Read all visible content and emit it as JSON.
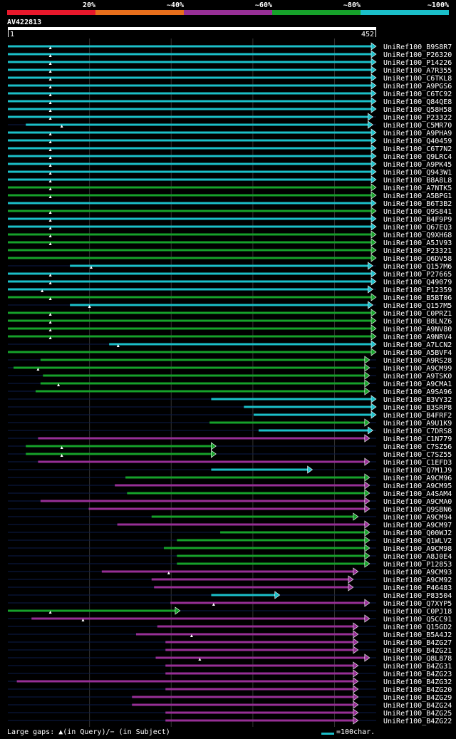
{
  "legend": {
    "segments": [
      {
        "label": "20%",
        "color": "#e8182b"
      },
      {
        "label": "~40%",
        "color": "#e86f1c"
      },
      {
        "label": "~60%",
        "color": "#972f96"
      },
      {
        "label": "~80%",
        "color": "#16a12a"
      },
      {
        "label": "~100%",
        "color": "#1bbfc9"
      }
    ]
  },
  "query": {
    "name": "AV422813",
    "start_label": "1",
    "end_label": "452",
    "length": 452
  },
  "footer": {
    "gaps_text": "Large gaps: ▲(in Query)/− (in Subject)",
    "scale_text": "=100char."
  },
  "chart_data": {
    "type": "alignment",
    "title": "AV422813",
    "query_length": 452,
    "x_range": [
      1,
      452
    ],
    "hits": [
      {
        "name": "UniRef100_B9S8R7",
        "start": 1,
        "end": 452,
        "color": "cyan",
        "gap": 53
      },
      {
        "name": "UniRef100_P26320",
        "start": 1,
        "end": 452,
        "color": "cyan",
        "gap": 53
      },
      {
        "name": "UniRef100_P14226",
        "start": 1,
        "end": 452,
        "color": "cyan",
        "gap": 53
      },
      {
        "name": "UniRef100_A7R355",
        "start": 1,
        "end": 452,
        "color": "cyan",
        "gap": 53
      },
      {
        "name": "UniRef100_C6TKL8",
        "start": 1,
        "end": 452,
        "color": "cyan",
        "gap": 53
      },
      {
        "name": "UniRef100_A9PGS6",
        "start": 1,
        "end": 452,
        "color": "cyan",
        "gap": 53
      },
      {
        "name": "UniRef100_C6TC92",
        "start": 1,
        "end": 452,
        "color": "cyan",
        "gap": 53
      },
      {
        "name": "UniRef100_Q84QE8",
        "start": 1,
        "end": 452,
        "color": "cyan",
        "gap": 53
      },
      {
        "name": "UniRef100_Q58H58",
        "start": 1,
        "end": 452,
        "color": "cyan",
        "gap": 53
      },
      {
        "name": "UniRef100_P23322",
        "start": 1,
        "end": 448,
        "color": "cyan",
        "gap": 53
      },
      {
        "name": "UniRef100_C5MR70",
        "start": 23,
        "end": 448,
        "color": "cyan",
        "gap": 67
      },
      {
        "name": "UniRef100_A9PHA9",
        "start": 1,
        "end": 452,
        "color": "cyan",
        "gap": 53
      },
      {
        "name": "UniRef100_Q40459",
        "start": 1,
        "end": 452,
        "color": "cyan",
        "gap": 53
      },
      {
        "name": "UniRef100_C6T7N2",
        "start": 1,
        "end": 452,
        "color": "cyan",
        "gap": 53
      },
      {
        "name": "UniRef100_Q9LRC4",
        "start": 1,
        "end": 452,
        "color": "cyan",
        "gap": 53
      },
      {
        "name": "UniRef100_A9PK45",
        "start": 1,
        "end": 452,
        "color": "cyan",
        "gap": 53
      },
      {
        "name": "UniRef100_Q943W1",
        "start": 1,
        "end": 452,
        "color": "cyan",
        "gap": 53
      },
      {
        "name": "UniRef100_B8A8L8",
        "start": 1,
        "end": 452,
        "color": "cyan",
        "gap": 53
      },
      {
        "name": "UniRef100_A7NTK5",
        "start": 1,
        "end": 452,
        "color": "green",
        "gap": 53
      },
      {
        "name": "UniRef100_A5BPG1",
        "start": 1,
        "end": 452,
        "color": "green",
        "gap": 53
      },
      {
        "name": "UniRef100_B6T3B2",
        "start": 1,
        "end": 452,
        "color": "cyan",
        "gap": null
      },
      {
        "name": "UniRef100_Q9S841",
        "start": 1,
        "end": 452,
        "color": "green",
        "gap": 53
      },
      {
        "name": "UniRef100_B4F9P9",
        "start": 1,
        "end": 452,
        "color": "cyan",
        "gap": 53
      },
      {
        "name": "UniRef100_Q67EQ3",
        "start": 1,
        "end": 452,
        "color": "cyan",
        "gap": 53
      },
      {
        "name": "UniRef100_Q9XH68",
        "start": 1,
        "end": 452,
        "color": "green",
        "gap": 53
      },
      {
        "name": "UniRef100_A5JV93",
        "start": 1,
        "end": 452,
        "color": "green",
        "gap": 53
      },
      {
        "name": "UniRef100_P23321",
        "start": 1,
        "end": 452,
        "color": "green",
        "gap": null
      },
      {
        "name": "UniRef100_Q6DV58",
        "start": 1,
        "end": 452,
        "color": "green",
        "gap": null
      },
      {
        "name": "UniRef100_Q157M6",
        "start": 77,
        "end": 448,
        "color": "cyan",
        "gap": 103
      },
      {
        "name": "UniRef100_P27665",
        "start": 1,
        "end": 452,
        "color": "cyan",
        "gap": 53
      },
      {
        "name": "UniRef100_Q49079",
        "start": 1,
        "end": 452,
        "color": "cyan",
        "gap": 53
      },
      {
        "name": "UniRef100_P12359",
        "start": 1,
        "end": 448,
        "color": "cyan",
        "gap": 43
      },
      {
        "name": "UniRef100_B5BT06",
        "start": 1,
        "end": 452,
        "color": "green",
        "gap": 53
      },
      {
        "name": "UniRef100_Q157M5",
        "start": 77,
        "end": 448,
        "color": "cyan",
        "gap": 101
      },
      {
        "name": "UniRef100_C0PRZ1",
        "start": 1,
        "end": 452,
        "color": "green",
        "gap": 53
      },
      {
        "name": "UniRef100_B8LNZ6",
        "start": 1,
        "end": 452,
        "color": "green",
        "gap": 53
      },
      {
        "name": "UniRef100_A9NV80",
        "start": 1,
        "end": 452,
        "color": "green",
        "gap": 53
      },
      {
        "name": "UniRef100_A9NRV4",
        "start": 1,
        "end": 452,
        "color": "green",
        "gap": 53
      },
      {
        "name": "UniRef100_A7LCN2",
        "start": 125,
        "end": 452,
        "color": "cyan",
        "gap": 136
      },
      {
        "name": "UniRef100_A5BVF4",
        "start": 1,
        "end": 452,
        "color": "green",
        "gap": null
      },
      {
        "name": "UniRef100_A9RS28",
        "start": 41,
        "end": 444,
        "color": "green",
        "gap": null
      },
      {
        "name": "UniRef100_A9CM99",
        "start": 8,
        "end": 444,
        "color": "green",
        "gap": 38
      },
      {
        "name": "UniRef100_A9TSK0",
        "start": 44,
        "end": 444,
        "color": "green",
        "gap": null
      },
      {
        "name": "UniRef100_A9CMA1",
        "start": 41,
        "end": 444,
        "color": "green",
        "gap": 63
      },
      {
        "name": "UniRef100_A9SA96",
        "start": 35,
        "end": 444,
        "color": "green",
        "gap": null
      },
      {
        "name": "UniRef100_B3VY32",
        "start": 250,
        "end": 452,
        "color": "cyan",
        "gap": null
      },
      {
        "name": "UniRef100_B3SRP8",
        "start": 290,
        "end": 452,
        "color": "cyan",
        "gap": null
      },
      {
        "name": "UniRef100_B4FRF2",
        "start": 302,
        "end": 452,
        "color": "cyan",
        "gap": null
      },
      {
        "name": "UniRef100_A9U1K9",
        "start": 248,
        "end": 444,
        "color": "green",
        "gap": null
      },
      {
        "name": "UniRef100_C7DRS8",
        "start": 308,
        "end": 448,
        "color": "cyan",
        "gap": null
      },
      {
        "name": "UniRef100_C1N779",
        "start": 38,
        "end": 444,
        "color": "purple",
        "gap": null
      },
      {
        "name": "UniRef100_C7SZ56",
        "start": 23,
        "end": 256,
        "color": "green",
        "gap": 67
      },
      {
        "name": "UniRef100_C7SZ55",
        "start": 23,
        "end": 256,
        "color": "green",
        "gap": 67
      },
      {
        "name": "UniRef100_C1EFD3",
        "start": 38,
        "end": 444,
        "color": "purple",
        "gap": null
      },
      {
        "name": "UniRef100_Q7M1J9",
        "start": 250,
        "end": 374,
        "color": "cyan",
        "gap": null
      },
      {
        "name": "UniRef100_A9CM96",
        "start": 145,
        "end": 444,
        "color": "green",
        "gap": null
      },
      {
        "name": "UniRef100_A9CM95",
        "start": 132,
        "end": 444,
        "color": "purple",
        "gap": null
      },
      {
        "name": "UniRef100_A4SAM4",
        "start": 147,
        "end": 444,
        "color": "green",
        "gap": null
      },
      {
        "name": "UniRef100_A9CMA0",
        "start": 41,
        "end": 444,
        "color": "purple",
        "gap": null
      },
      {
        "name": "UniRef100_Q9SBN6",
        "start": 100,
        "end": 444,
        "color": "purple",
        "gap": null
      },
      {
        "name": "UniRef100_A9CM94",
        "start": 177,
        "end": 430,
        "color": "green",
        "gap": null
      },
      {
        "name": "UniRef100_A9CM97",
        "start": 135,
        "end": 444,
        "color": "purple",
        "gap": null
      },
      {
        "name": "UniRef100_Q00WJ2",
        "start": 261,
        "end": 444,
        "color": "green",
        "gap": null
      },
      {
        "name": "UniRef100_Q1WLV2",
        "start": 208,
        "end": 444,
        "color": "green",
        "gap": null
      },
      {
        "name": "UniRef100_A9CM98",
        "start": 192,
        "end": 444,
        "color": "green",
        "gap": null
      },
      {
        "name": "UniRef100_A8J0E4",
        "start": 208,
        "end": 444,
        "color": "green",
        "gap": null
      },
      {
        "name": "UniRef100_P12853",
        "start": 208,
        "end": 444,
        "color": "green",
        "gap": null
      },
      {
        "name": "UniRef100_A9CM93",
        "start": 116,
        "end": 430,
        "color": "purple",
        "gap": 198
      },
      {
        "name": "UniRef100_A9CM92",
        "start": 177,
        "end": 424,
        "color": "purple",
        "gap": null
      },
      {
        "name": "UniRef100_P46483",
        "start": 180,
        "end": 424,
        "color": "purple",
        "gap": null
      },
      {
        "name": "UniRef100_P83504",
        "start": 250,
        "end": 334,
        "color": "cyan",
        "gap": null
      },
      {
        "name": "UniRef100_Q7XYP5",
        "start": 200,
        "end": 444,
        "color": "purple",
        "gap": 253
      },
      {
        "name": "UniRef100_C0PJ18",
        "start": 1,
        "end": 212,
        "color": "green",
        "gap": 53
      },
      {
        "name": "UniRef100_Q5CC91",
        "start": 30,
        "end": 444,
        "color": "purple",
        "gap": 93
      },
      {
        "name": "UniRef100_Q15GD2",
        "start": 184,
        "end": 430,
        "color": "purple",
        "gap": null
      },
      {
        "name": "UniRef100_B5A4J2",
        "start": 158,
        "end": 430,
        "color": "purple",
        "gap": 226
      },
      {
        "name": "UniRef100_B4ZG27",
        "start": 194,
        "end": 430,
        "color": "purple",
        "gap": null
      },
      {
        "name": "UniRef100_B4ZG21",
        "start": 194,
        "end": 430,
        "color": "purple",
        "gap": null
      },
      {
        "name": "UniRef100_Q8L878",
        "start": 182,
        "end": 444,
        "color": "purple",
        "gap": 236
      },
      {
        "name": "UniRef100_B4ZG31",
        "start": 194,
        "end": 430,
        "color": "purple",
        "gap": null
      },
      {
        "name": "UniRef100_B4ZG23",
        "start": 194,
        "end": 430,
        "color": "purple",
        "gap": null
      },
      {
        "name": "UniRef100_B4ZG32",
        "start": 12,
        "end": 430,
        "color": "purple",
        "gap": null
      },
      {
        "name": "UniRef100_B4ZG20",
        "start": 194,
        "end": 430,
        "color": "purple",
        "gap": null
      },
      {
        "name": "UniRef100_B4ZG29",
        "start": 153,
        "end": 430,
        "color": "purple",
        "gap": null
      },
      {
        "name": "UniRef100_B4ZG24",
        "start": 153,
        "end": 430,
        "color": "purple",
        "gap": null
      },
      {
        "name": "UniRef100_B4ZG25",
        "start": 194,
        "end": 430,
        "color": "purple",
        "gap": null
      },
      {
        "name": "UniRef100_B4ZG22",
        "start": 194,
        "end": 430,
        "color": "purple",
        "gap": null
      }
    ]
  }
}
